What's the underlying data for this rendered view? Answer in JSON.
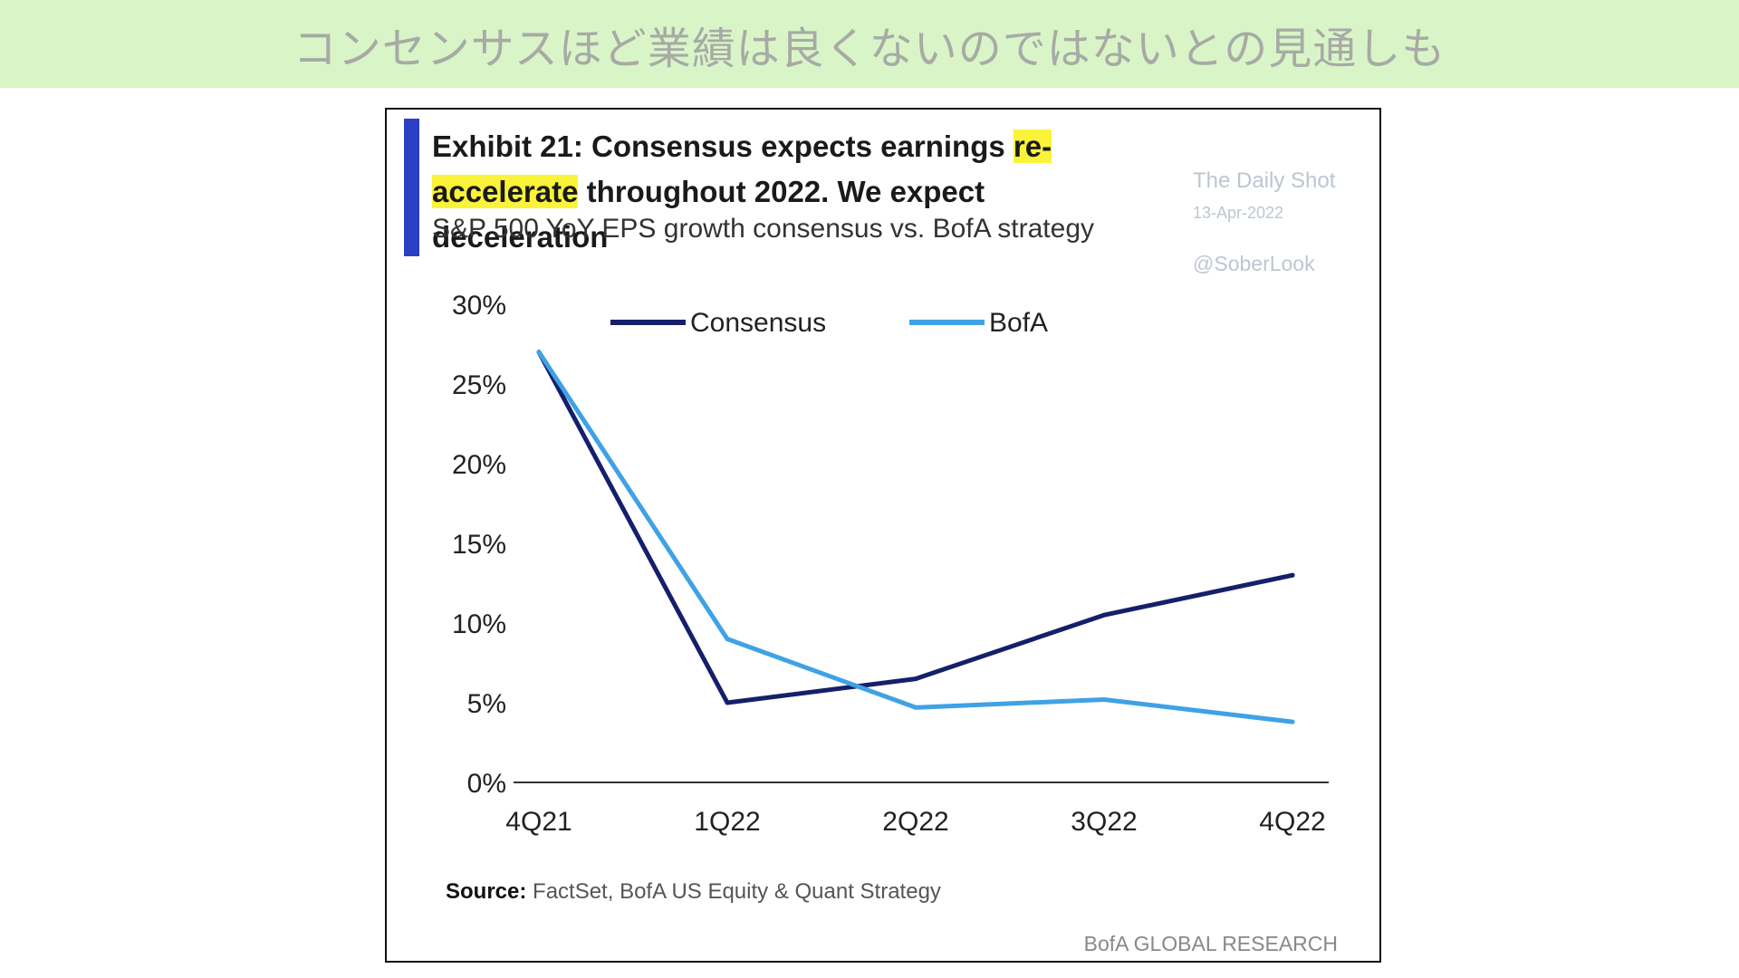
{
  "banner": {
    "text": "コンセンサスほど業績は良くないのではないとの見通しも"
  },
  "exhibit": {
    "title_before": "Exhibit 21: Consensus expects earnings ",
    "title_highlight": "re-accelerate",
    "title_after": " throughout 2022. We expect deceleration",
    "subtitle": "S&P 500 YoY EPS growth consensus vs. BofA strategy",
    "source_label": "Source:",
    "source_text": " FactSet, BofA US Equity & Quant Strategy",
    "footer": "BofA GLOBAL RESEARCH"
  },
  "watermark": {
    "name": "The Daily Shot",
    "date": "13-Apr-2022",
    "handle": "@SoberLook"
  },
  "colors": {
    "banner_bg": "#d9f5c8",
    "accent_bar": "#2b3fc4",
    "highlight": "#fbf33a",
    "consensus": "#15206b",
    "bofa": "#3fa2e4"
  },
  "chart_data": {
    "type": "line",
    "title": "Exhibit 21: Consensus expects earnings re-accelerate throughout 2022. We expect deceleration",
    "subtitle": "S&P 500 YoY EPS growth consensus vs. BofA strategy",
    "categories": [
      "4Q21",
      "1Q22",
      "2Q22",
      "3Q22",
      "4Q22"
    ],
    "series": [
      {
        "name": "Consensus",
        "color": "#15206b",
        "values": [
          27.0,
          5.0,
          6.5,
          10.5,
          13.0
        ]
      },
      {
        "name": "BofA",
        "color": "#3fa2e4",
        "values": [
          27.0,
          9.0,
          4.7,
          5.2,
          3.8
        ]
      }
    ],
    "ylim": [
      0,
      30
    ],
    "yticks": [
      0,
      5,
      10,
      15,
      20,
      25,
      30
    ],
    "ytick_labels": [
      "0%",
      "5%",
      "10%",
      "15%",
      "20%",
      "25%",
      "30%"
    ],
    "xlabel": "",
    "ylabel": "",
    "grid": false,
    "legend_position": "top"
  }
}
